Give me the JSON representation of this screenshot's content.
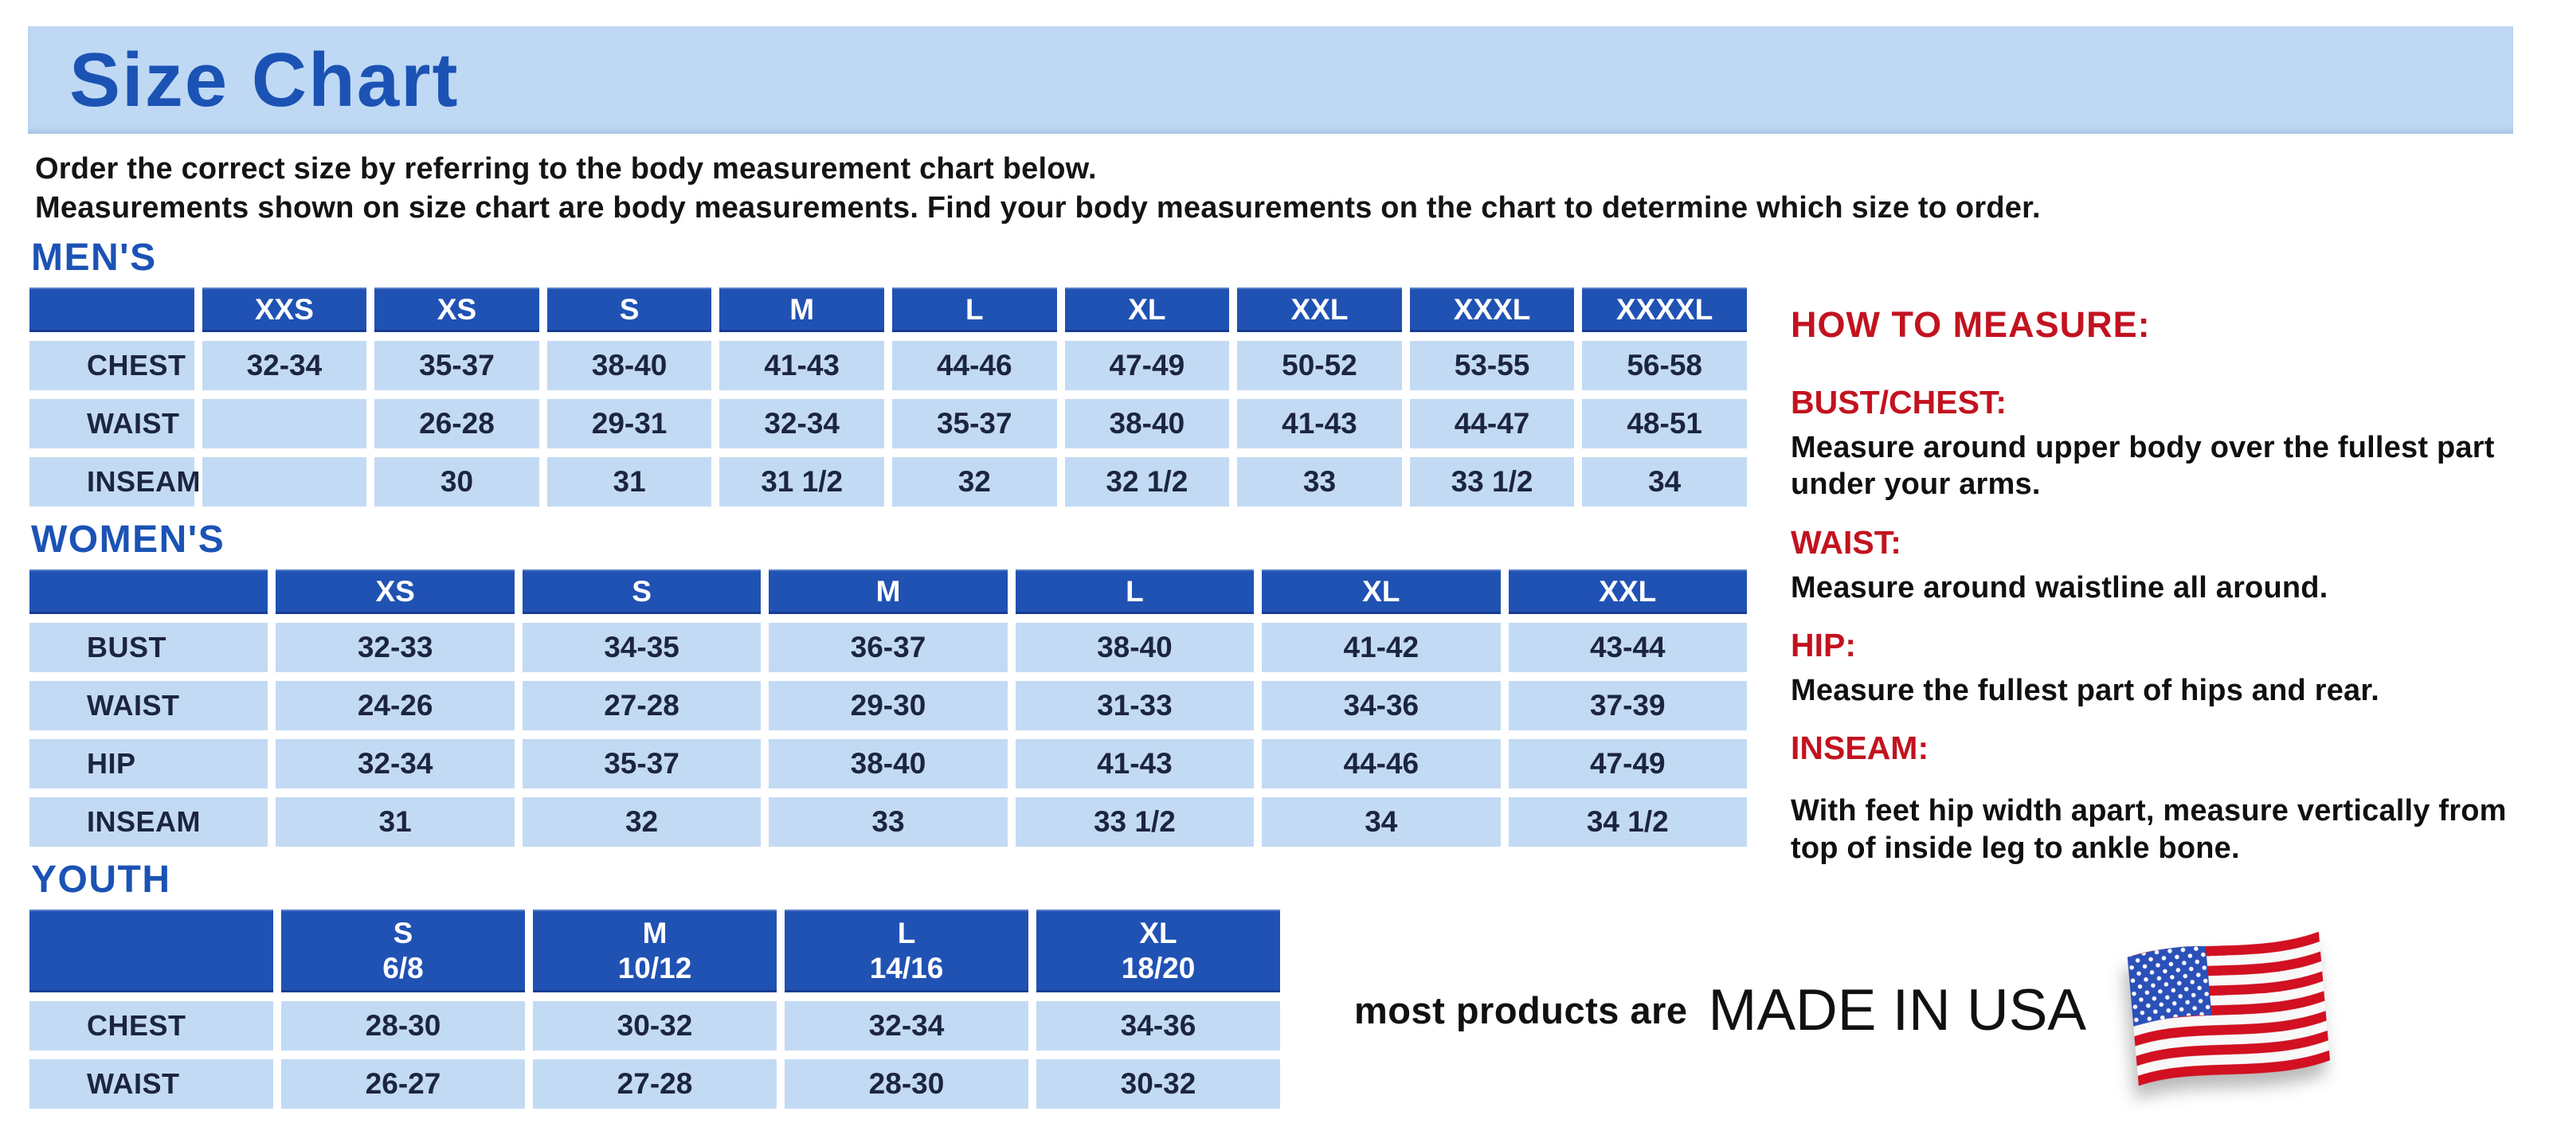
{
  "banner": {
    "title": "Size Chart"
  },
  "intro": {
    "line1": "Order the correct size by referring to the body measurement chart below.",
    "line2": "Measurements shown on size chart are body measurements.  Find your body measurements on the chart to determine which size to order."
  },
  "tables": {
    "mens": {
      "heading": "MEN'S",
      "columns": [
        "XXS",
        "XS",
        "S",
        "M",
        "L",
        "XL",
        "XXL",
        "XXXL",
        "XXXXL"
      ],
      "rows": [
        {
          "label": "CHEST",
          "values": [
            "32-34",
            "35-37",
            "38-40",
            "41-43",
            "44-46",
            "47-49",
            "50-52",
            "53-55",
            "56-58"
          ]
        },
        {
          "label": "WAIST",
          "values": [
            "",
            "26-28",
            "29-31",
            "32-34",
            "35-37",
            "38-40",
            "41-43",
            "44-47",
            "48-51"
          ]
        },
        {
          "label": "INSEAM",
          "values": [
            "",
            "30",
            "31",
            "31 1/2",
            "32",
            "32 1/2",
            "33",
            "33 1/2",
            "34"
          ]
        }
      ]
    },
    "womens": {
      "heading": "WOMEN'S",
      "columns": [
        "XS",
        "S",
        "M",
        "L",
        "XL",
        "XXL"
      ],
      "rows": [
        {
          "label": "BUST",
          "values": [
            "32-33",
            "34-35",
            "36-37",
            "38-40",
            "41-42",
            "43-44"
          ]
        },
        {
          "label": "WAIST",
          "values": [
            "24-26",
            "27-28",
            "29-30",
            "31-33",
            "34-36",
            "37-39"
          ]
        },
        {
          "label": "HIP",
          "values": [
            "32-34",
            "35-37",
            "38-40",
            "41-43",
            "44-46",
            "47-49"
          ]
        },
        {
          "label": "INSEAM",
          "values": [
            "31",
            "32",
            "33",
            "33 1/2",
            "34",
            "34 1/2"
          ]
        }
      ]
    },
    "youth": {
      "heading": "YOUTH",
      "columns": [
        "S\n6/8",
        "M\n10/12",
        "L\n14/16",
        "XL\n18/20"
      ],
      "rows": [
        {
          "label": "CHEST",
          "values": [
            "28-30",
            "30-32",
            "32-34",
            "34-36"
          ]
        },
        {
          "label": "WAIST",
          "values": [
            "26-27",
            "27-28",
            "28-30",
            "30-32"
          ]
        }
      ]
    }
  },
  "how_to_measure": {
    "heading": "HOW TO MEASURE:",
    "items": [
      {
        "label": "BUST/CHEST:",
        "text": "Measure around upper body over the fullest part under your arms."
      },
      {
        "label": "WAIST:",
        "text": "Measure around waistline all around."
      },
      {
        "label": "HIP:",
        "text": "Measure the fullest part of hips and rear."
      },
      {
        "label": "INSEAM:",
        "text": "With feet hip width apart, measure vertically from top of inside leg to ankle bone."
      }
    ]
  },
  "footer": {
    "prefix": "most products are",
    "made_in_usa": "MADE IN USA",
    "flag_icon": "us-flag-icon"
  },
  "colors": {
    "header_blue": "#2052b4",
    "cell_light_blue": "#c3daf4",
    "banner_light_blue": "#bfd9f4",
    "heading_blue": "#1b53b5",
    "accent_red": "#c2131f",
    "flag_red": "#d21021",
    "flag_canton_blue": "#2b50b8",
    "text_dark": "#1c2540"
  }
}
